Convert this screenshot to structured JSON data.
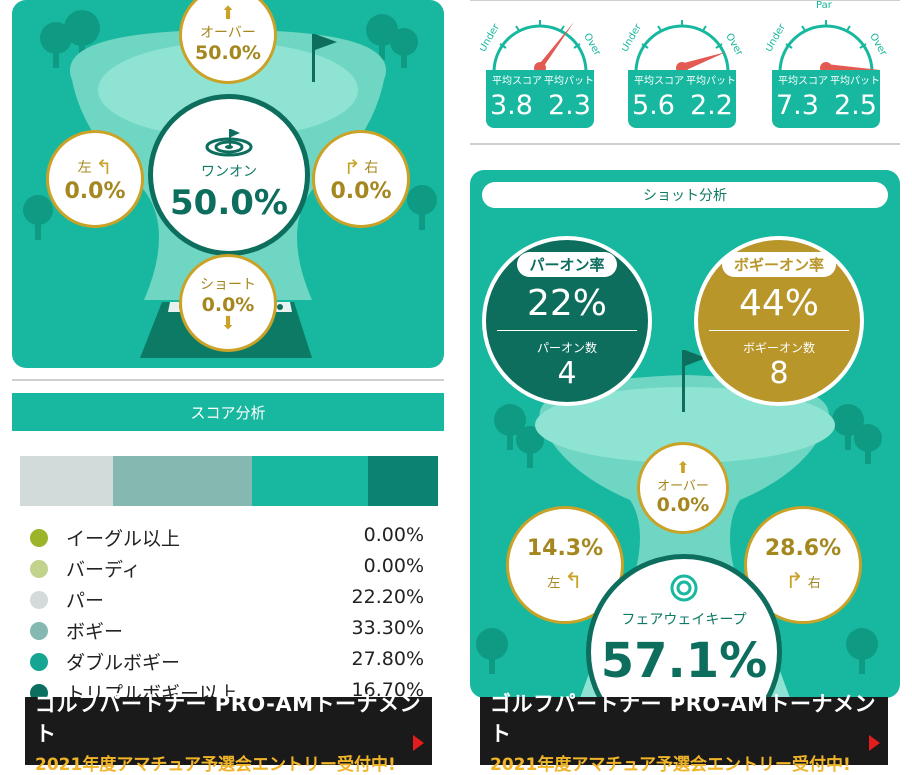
{
  "left": {
    "one_on_panel": {
      "center": {
        "icon": "target-icon",
        "label": "ワンオン",
        "value": "50.0%"
      },
      "over": {
        "label": "オーバー",
        "value": "50.0%"
      },
      "left": {
        "label": "左",
        "value": "0.0%"
      },
      "right": {
        "label": "右",
        "value": "0.0%"
      },
      "short": {
        "label": "ショート",
        "value": "0.0%"
      }
    },
    "score_analysis": {
      "title": "スコア分析",
      "bar_colors": [
        "#d3dbda",
        "#86b8b2",
        "#17b89f",
        "#0b8373"
      ],
      "bar_fractions": [
        0.222,
        0.333,
        0.278,
        0.167
      ],
      "items": [
        {
          "label": "イーグル以上",
          "value": "0.00%",
          "color": "#9cb42a"
        },
        {
          "label": "バーディ",
          "value": "0.00%",
          "color": "#c1d38d"
        },
        {
          "label": "パー",
          "value": "22.20%",
          "color": "#d3dbda"
        },
        {
          "label": "ボギー",
          "value": "33.30%",
          "color": "#86b8b2"
        },
        {
          "label": "ダブルボギー",
          "value": "27.80%",
          "color": "#17a593"
        },
        {
          "label": "トリプルボギー以上",
          "value": "16.70%",
          "color": "#0b6e5f"
        }
      ]
    },
    "banner": {
      "line1": "ゴルフパートナー PRO-AMトーナメント",
      "line2": "2021年度アマチュア予選会エントリー受付中!"
    }
  },
  "right": {
    "gauges": [
      {
        "under": "Under",
        "over": "Over",
        "score_label": "平均スコア",
        "score": "3.8",
        "putt_label": "平均パット",
        "putt": "2.3"
      },
      {
        "under": "Under",
        "over": "Over",
        "score_label": "平均スコア",
        "score": "5.6",
        "putt_label": "平均パット",
        "putt": "2.2"
      },
      {
        "under": "Under",
        "par": "Par",
        "over": "Over",
        "score_label": "平均スコア",
        "score": "7.3",
        "putt_label": "平均パット",
        "putt": "2.5"
      }
    ],
    "shot_analysis": {
      "title": "ショット分析",
      "par_on": {
        "pill": "パーオン率",
        "rate": "22%",
        "count_label": "パーオン数",
        "count": "4"
      },
      "bogey_on": {
        "pill": "ボギーオン率",
        "rate": "44%",
        "count_label": "ボギーオン数",
        "count": "8"
      },
      "over": {
        "label": "オーバー",
        "value": "0.0%"
      },
      "left": {
        "label": "左",
        "value": "14.3%"
      },
      "right": {
        "label": "右",
        "value": "28.6%"
      },
      "fairway": {
        "icon": "fairway-icon",
        "label": "フェアウェイキープ",
        "value": "57.1%"
      }
    },
    "banner": {
      "line1": "ゴルフパートナー PRO-AMトーナメント",
      "line2": "2021年度アマチュア予選会エントリー受付中!"
    }
  },
  "colors": {
    "teal": "#17b89f",
    "dark_teal": "#0d6e5e",
    "gold": "#b8962a",
    "light_teal": "#6fd6c3"
  }
}
